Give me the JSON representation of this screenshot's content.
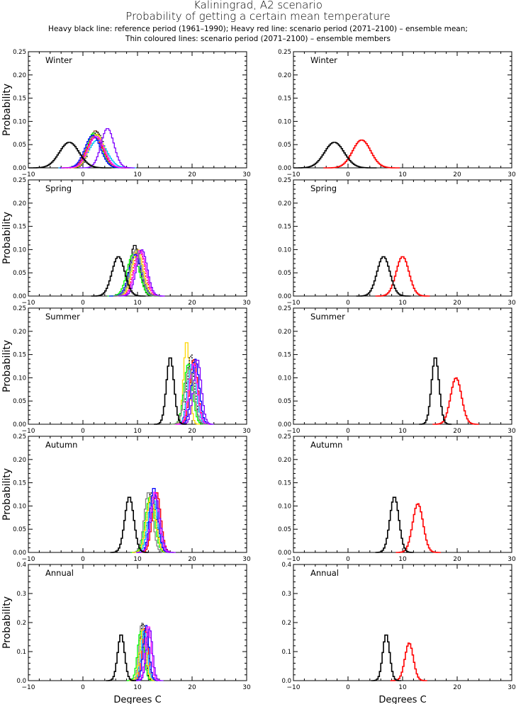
{
  "chart_data": {
    "type": "line",
    "title": "Kaliningrad, A2 scenario",
    "subtitle": "Probability of getting a certain mean temperature",
    "caption1": "Heavy black line: reference period (1961–1990); Heavy red line: scenario period (2071–2100) – ensemble mean;",
    "caption2": "Thin coloured lines: scenario period (2071–2100) – ensemble members",
    "xlabel": "Degrees C",
    "ylabel": "Probability",
    "xlim": [
      -10,
      30
    ],
    "xticks": [
      -10,
      0,
      10,
      20,
      30
    ],
    "bin_width": 0.25,
    "colors": {
      "reference": "#000000",
      "ensemble_mean": "#ff0000"
    },
    "panels": [
      {
        "season": "Winter",
        "ylim": [
          0,
          0.25
        ],
        "yticks": [
          "0.00",
          "0.05",
          "0.10",
          "0.15",
          "0.20",
          "0.25"
        ],
        "reference": {
          "mean": -2.5,
          "peak": 0.055
        },
        "ensemble_mean": {
          "mean": 2.5,
          "peak": 0.06
        },
        "members": [
          {
            "mean": 2.3,
            "peak": 0.08,
            "color": "#a0522d"
          },
          {
            "mean": 2.0,
            "peak": 0.075,
            "color": "#00ff00"
          },
          {
            "mean": 2.6,
            "peak": 0.078,
            "color": "#000000"
          },
          {
            "mean": 2.2,
            "peak": 0.065,
            "color": "#ff0000"
          },
          {
            "mean": 2.7,
            "peak": 0.06,
            "color": "#00bfff"
          },
          {
            "mean": 2.5,
            "peak": 0.072,
            "color": "#ffd700"
          },
          {
            "mean": 1.8,
            "peak": 0.07,
            "color": "#0000ff"
          },
          {
            "mean": 2.4,
            "peak": 0.068,
            "color": "#ff00ff"
          },
          {
            "mean": 4.5,
            "peak": 0.085,
            "color": "#7f00ff"
          }
        ]
      },
      {
        "season": "Spring",
        "ylim": [
          0,
          0.25
        ],
        "yticks": [
          "0.00",
          "0.05",
          "0.10",
          "0.15",
          "0.20",
          "0.25"
        ],
        "reference": {
          "mean": 6.5,
          "peak": 0.085
        },
        "ensemble_mean": {
          "mean": 10.0,
          "peak": 0.085
        },
        "members": [
          {
            "mean": 9.5,
            "peak": 0.11,
            "color": "#000000"
          },
          {
            "mean": 9.2,
            "peak": 0.09,
            "color": "#00ff00"
          },
          {
            "mean": 10.3,
            "peak": 0.1,
            "color": "#ff0000"
          },
          {
            "mean": 9.8,
            "peak": 0.095,
            "color": "#00bfff"
          },
          {
            "mean": 10.0,
            "peak": 0.1,
            "color": "#ffd700"
          },
          {
            "mean": 9.6,
            "peak": 0.09,
            "color": "#0000ff"
          },
          {
            "mean": 10.5,
            "peak": 0.098,
            "color": "#ff00ff"
          },
          {
            "mean": 10.8,
            "peak": 0.1,
            "color": "#7f00ff"
          },
          {
            "mean": 9.7,
            "peak": 0.1,
            "color": "#808080"
          }
        ]
      },
      {
        "season": "Summer",
        "ylim": [
          0,
          0.25
        ],
        "yticks": [
          "0.00",
          "0.05",
          "0.10",
          "0.15",
          "0.20",
          "0.25"
        ],
        "reference": {
          "mean": 16.0,
          "peak": 0.145
        },
        "ensemble_mean": {
          "mean": 19.8,
          "peak": 0.1
        },
        "members": [
          {
            "mean": 19.0,
            "peak": 0.18,
            "color": "#ffd700"
          },
          {
            "mean": 19.3,
            "peak": 0.13,
            "color": "#00ff00"
          },
          {
            "mean": 19.8,
            "peak": 0.15,
            "color": "#000000"
          },
          {
            "mean": 20.3,
            "peak": 0.14,
            "color": "#ff0000"
          },
          {
            "mean": 20.0,
            "peak": 0.13,
            "color": "#00bfff"
          },
          {
            "mean": 20.6,
            "peak": 0.14,
            "color": "#0000ff"
          },
          {
            "mean": 20.2,
            "peak": 0.13,
            "color": "#ff00ff"
          },
          {
            "mean": 21.0,
            "peak": 0.14,
            "color": "#7f00ff"
          },
          {
            "mean": 19.5,
            "peak": 0.12,
            "color": "#808080"
          }
        ]
      },
      {
        "season": "Autumn",
        "ylim": [
          0,
          0.25
        ],
        "yticks": [
          "0.00",
          "0.05",
          "0.10",
          "0.15",
          "0.20",
          "0.25"
        ],
        "reference": {
          "mean": 8.5,
          "peak": 0.12
        },
        "ensemble_mean": {
          "mean": 12.8,
          "peak": 0.105
        },
        "members": [
          {
            "mean": 12.0,
            "peak": 0.13,
            "color": "#808080"
          },
          {
            "mean": 12.3,
            "peak": 0.12,
            "color": "#00ff00"
          },
          {
            "mean": 12.6,
            "peak": 0.13,
            "color": "#000000"
          },
          {
            "mean": 13.5,
            "peak": 0.13,
            "color": "#ff0000"
          },
          {
            "mean": 12.8,
            "peak": 0.12,
            "color": "#00bfff"
          },
          {
            "mean": 12.5,
            "peak": 0.12,
            "color": "#ffd700"
          },
          {
            "mean": 13.0,
            "peak": 0.14,
            "color": "#0000ff"
          },
          {
            "mean": 13.2,
            "peak": 0.13,
            "color": "#ff00ff"
          },
          {
            "mean": 13.3,
            "peak": 0.12,
            "color": "#7f00ff"
          }
        ]
      },
      {
        "season": "Annual",
        "ylim": [
          0,
          0.4
        ],
        "yticks": [
          "0.0",
          "0.1",
          "0.2",
          "0.3",
          "0.4"
        ],
        "reference": {
          "mean": 7.0,
          "peak": 0.16
        },
        "ensemble_mean": {
          "mean": 11.2,
          "peak": 0.13
        },
        "members": [
          {
            "mean": 10.8,
            "peak": 0.2,
            "color": "#808080"
          },
          {
            "mean": 10.6,
            "peak": 0.17,
            "color": "#00ff00"
          },
          {
            "mean": 11.0,
            "peak": 0.2,
            "color": "#000000"
          },
          {
            "mean": 11.4,
            "peak": 0.18,
            "color": "#ff0000"
          },
          {
            "mean": 11.2,
            "peak": 0.17,
            "color": "#00bfff"
          },
          {
            "mean": 11.0,
            "peak": 0.18,
            "color": "#ffd700"
          },
          {
            "mean": 11.6,
            "peak": 0.19,
            "color": "#0000ff"
          },
          {
            "mean": 12.0,
            "peak": 0.19,
            "color": "#ff00ff"
          },
          {
            "mean": 12.2,
            "peak": 0.18,
            "color": "#7f00ff"
          }
        ]
      }
    ]
  }
}
